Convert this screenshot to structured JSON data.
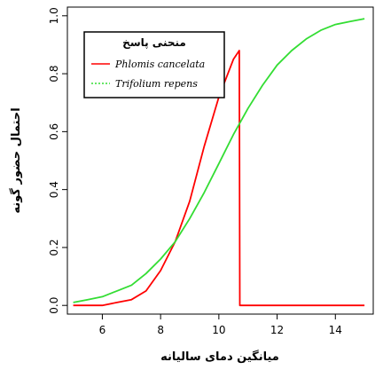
{
  "chart_data": {
    "type": "line",
    "xlabel": "میانگین دمای سالیانه",
    "ylabel": "احتمال حضور گونه",
    "xlim": [
      4.8,
      15.3
    ],
    "ylim": [
      -0.03,
      1.03
    ],
    "xticks": [
      6,
      8,
      10,
      12,
      14
    ],
    "yticks": [
      0.0,
      0.2,
      0.4,
      0.6,
      0.8,
      1.0
    ],
    "xtick_labels": [
      "6",
      "8",
      "10",
      "12",
      "14"
    ],
    "ytick_labels": [
      "0.0",
      "0.2",
      "0.4",
      "0.6",
      "0.8",
      "1.0"
    ],
    "grid": false,
    "legend": {
      "title": "منحنی پاسخ",
      "position": "top-left"
    },
    "series": [
      {
        "name": "Phlomis cancelata",
        "color": "#ff0000",
        "x": [
          5.0,
          5.5,
          6.0,
          6.5,
          7.0,
          7.5,
          8.0,
          8.5,
          9.0,
          9.5,
          10.0,
          10.5,
          10.7,
          10.72,
          11.0,
          12.0,
          13.0,
          14.0,
          15.0
        ],
        "y": [
          0.0,
          0.0,
          0.0,
          0.01,
          0.02,
          0.05,
          0.12,
          0.22,
          0.36,
          0.55,
          0.72,
          0.85,
          0.88,
          0.0,
          0.0,
          0.0,
          0.0,
          0.0,
          0.0
        ]
      },
      {
        "name": "Trifolium repens",
        "color": "#33dd33",
        "x": [
          5.0,
          5.5,
          6.0,
          6.5,
          7.0,
          7.5,
          8.0,
          8.5,
          9.0,
          9.5,
          10.0,
          10.5,
          11.0,
          11.5,
          12.0,
          12.5,
          13.0,
          13.5,
          14.0,
          14.5,
          15.0
        ],
        "y": [
          0.01,
          0.02,
          0.03,
          0.05,
          0.07,
          0.11,
          0.16,
          0.22,
          0.3,
          0.39,
          0.49,
          0.59,
          0.68,
          0.76,
          0.83,
          0.88,
          0.92,
          0.95,
          0.97,
          0.98,
          0.99
        ]
      }
    ]
  }
}
